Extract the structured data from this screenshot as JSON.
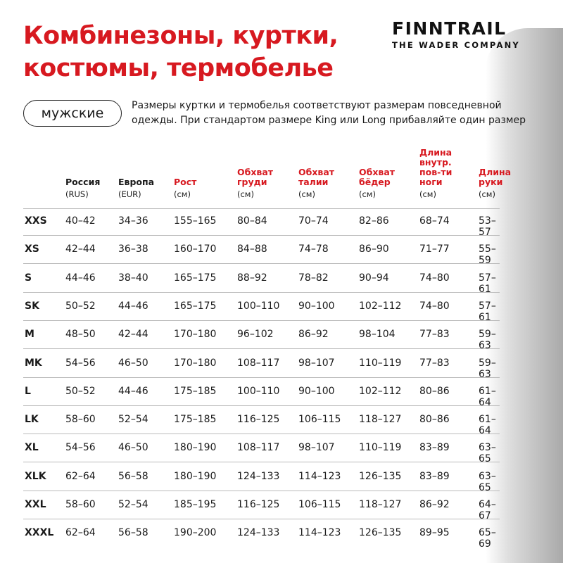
{
  "title": [
    "Комбинезоны, куртки,",
    "костюмы, термобелье"
  ],
  "logo": {
    "brand": "FINNTRAIL",
    "tagline": "THE WADER COMPANY"
  },
  "category": "мужские",
  "note": "Размеры куртки и термобелья соответствуют размерам повседневной одежды. При стандартом размере King или Long прибавляйте один размер",
  "colors": {
    "accent": "#d71920",
    "text": "#1a1a1a"
  },
  "table": {
    "columns": [
      {
        "label": "Россия",
        "unit": "(RUS)",
        "red": false
      },
      {
        "label": "Европа",
        "unit": "(EUR)",
        "red": false
      },
      {
        "label": "Рост",
        "unit": "(см)",
        "red": true
      },
      {
        "label": "Обхват груди",
        "unit": "(см)",
        "red": true
      },
      {
        "label": "Обхват талии",
        "unit": "(см)",
        "red": true
      },
      {
        "label": "Обхват бёдер",
        "unit": "(см)",
        "red": true
      },
      {
        "label": "Длина внутр. пов-ти ноги",
        "unit": "(см)",
        "red": true
      },
      {
        "label": "Длина руки",
        "unit": "(см)",
        "red": true
      }
    ],
    "rows": [
      [
        "XXS",
        "40–42",
        "34–36",
        "155–165",
        "80–84",
        "70–74",
        "82–86",
        "68–74",
        "53–57"
      ],
      [
        "XS",
        "42–44",
        "36–38",
        "160–170",
        "84–88",
        "74–78",
        "86–90",
        "71–77",
        "55–59"
      ],
      [
        "S",
        "44–46",
        "38–40",
        "165–175",
        "88–92",
        "78–82",
        "90–94",
        "74–80",
        "57–61"
      ],
      [
        "SK",
        "50–52",
        "44–46",
        "165–175",
        "100–110",
        "90–100",
        "102–112",
        "74–80",
        "57–61"
      ],
      [
        "M",
        "48–50",
        "42–44",
        "170–180",
        "96–102",
        "86–92",
        "98–104",
        "77–83",
        "59–63"
      ],
      [
        "MK",
        "54–56",
        "46–50",
        "170–180",
        "108–117",
        "98–107",
        "110–119",
        "77–83",
        "59–63"
      ],
      [
        "L",
        "50–52",
        "44–46",
        "175–185",
        "100–110",
        "90–100",
        "102–112",
        "80–86",
        "61–64"
      ],
      [
        "LK",
        "58–60",
        "52–54",
        "175–185",
        "116–125",
        "106–115",
        "118–127",
        "80–86",
        "61–64"
      ],
      [
        "XL",
        "54–56",
        "46–50",
        "180–190",
        "108–117",
        "98–107",
        "110–119",
        "83–89",
        "63–65"
      ],
      [
        "XLK",
        "62–64",
        "56–58",
        "180–190",
        "124–133",
        "114–123",
        "126–135",
        "83–89",
        "63–65"
      ],
      [
        "XXL",
        "58–60",
        "52–54",
        "185–195",
        "116–125",
        "106–115",
        "118–127",
        "86–92",
        "64–67"
      ],
      [
        "XXXL",
        "62–64",
        "56–58",
        "190–200",
        "124–133",
        "114–123",
        "126–135",
        "89–95",
        "65–69"
      ]
    ]
  }
}
